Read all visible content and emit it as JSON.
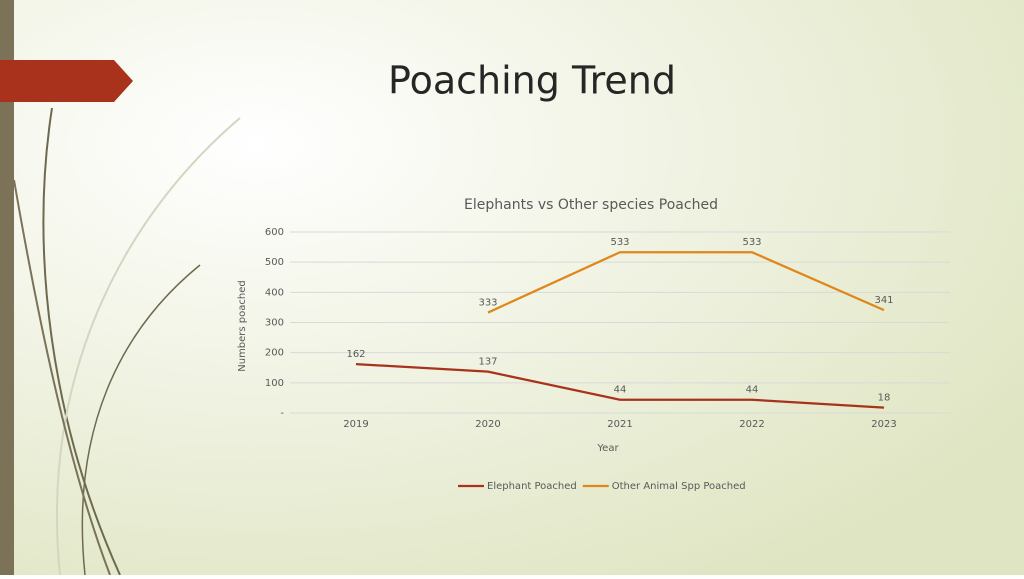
{
  "slide_title": "Poaching Trend",
  "chart_data": {
    "type": "line",
    "title": "Elephants vs Other species Poached",
    "x_label": "Year",
    "y_label": "Numbers poached",
    "categories": [
      "2019",
      "2020",
      "2021",
      "2022",
      "2023"
    ],
    "series": [
      {
        "name": "Elephant Poached",
        "color": "#a8321b",
        "values": [
          162,
          137,
          44,
          44,
          18
        ]
      },
      {
        "name": "Other Animal Spp Poached",
        "color": "#e0861a",
        "values": [
          null,
          333,
          533,
          533,
          341
        ]
      }
    ],
    "ylim": [
      0,
      600
    ],
    "yticks": [
      {
        "value": 0,
        "label": "-"
      },
      100,
      200,
      300,
      400,
      500,
      600
    ],
    "grid": true,
    "legend": "bottom",
    "data_labels": true
  }
}
